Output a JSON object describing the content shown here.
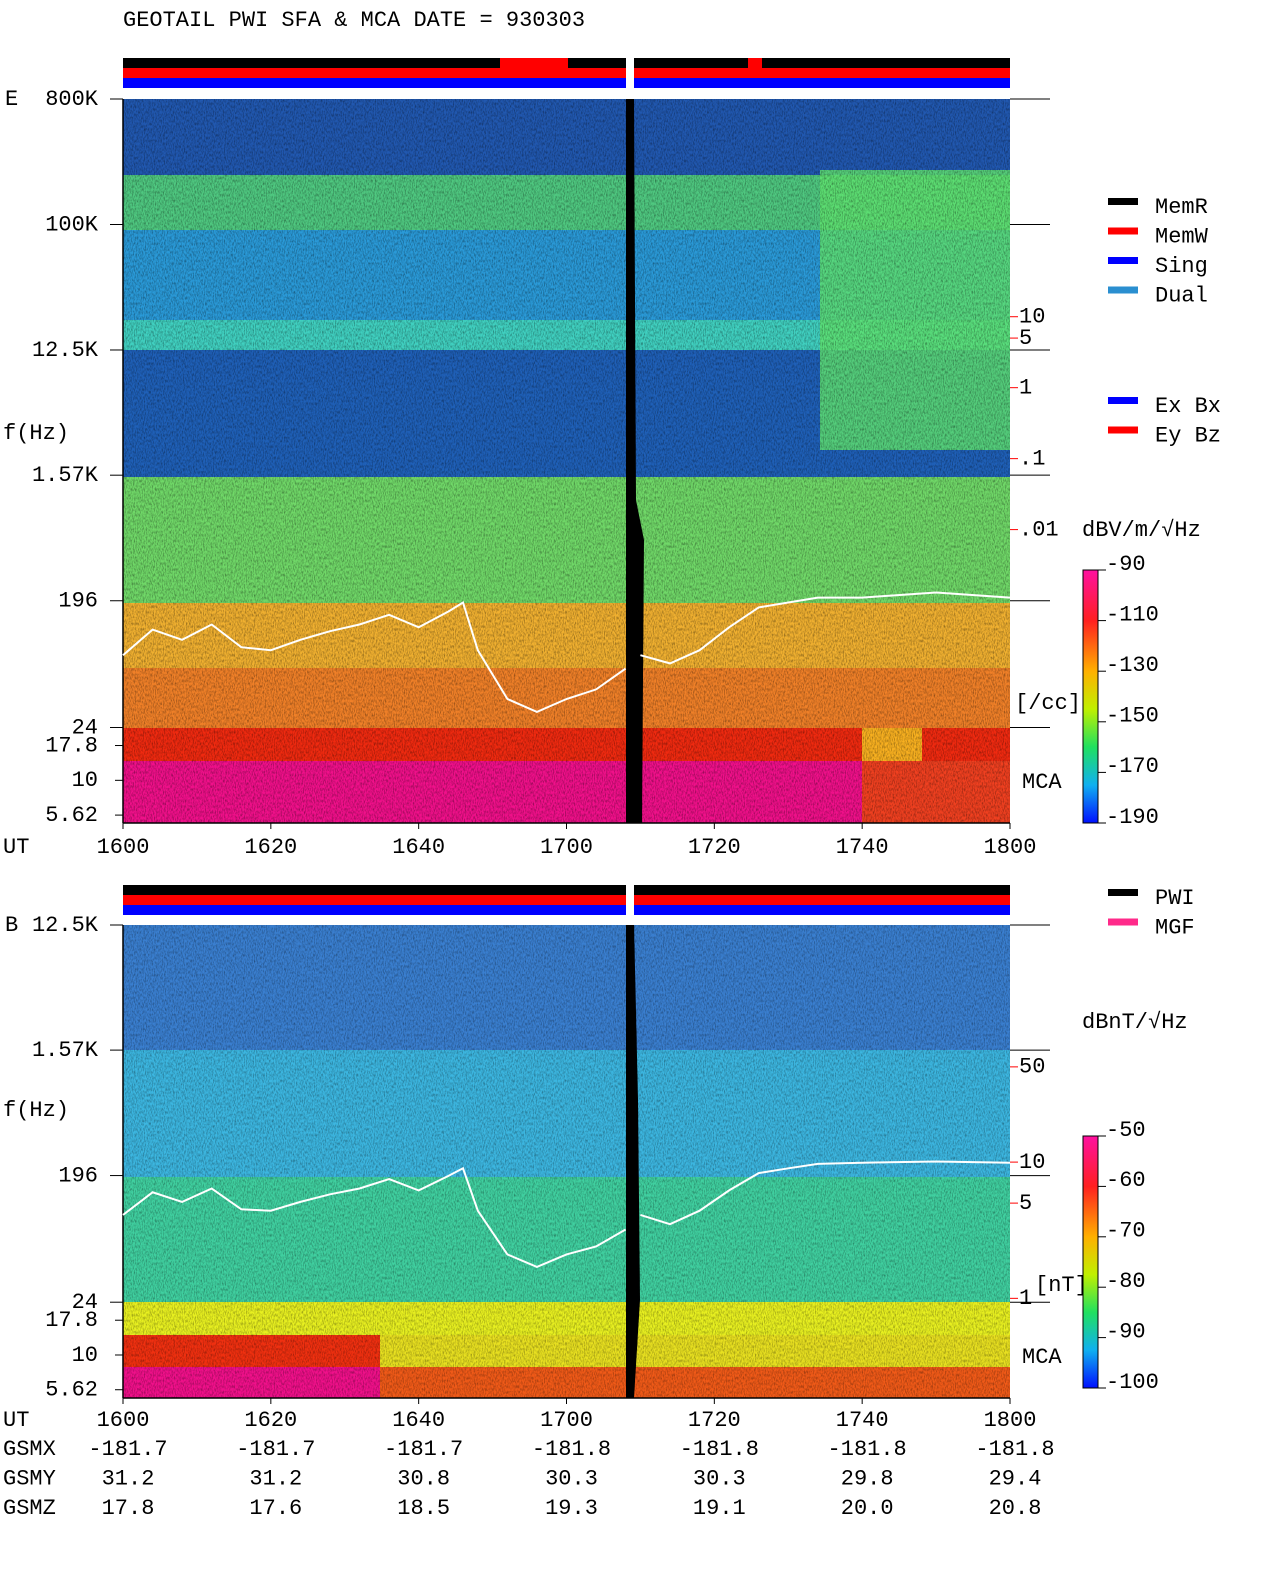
{
  "title": "GEOTAIL   PWI SFA & MCA   DATE = 930303",
  "chart_data": [
    {
      "type": "spectrogram",
      "panel": "E",
      "ylabel": "f(Hz)",
      "xlabel": "UT",
      "log_y": true,
      "ylim": [
        4.93,
        800000
      ],
      "yticks": [
        {
          "value": 800000,
          "label": "800K"
        },
        {
          "value": 100000,
          "label": "100K"
        },
        {
          "value": 12500,
          "label": "12.5K"
        },
        {
          "value": 1570,
          "label": "1.57K"
        },
        196,
        24
      ],
      "mca_label": "MCA",
      "mca_yticks": [
        17.8,
        10,
        5.62
      ],
      "categories": [
        "1600",
        "1620",
        "1640",
        "1700",
        "1720",
        "1740",
        "1800"
      ],
      "legend": [
        {
          "name": "MemR",
          "color": "#000000"
        },
        {
          "name": "MemW",
          "color": "#ff0000"
        },
        {
          "name": "Sing",
          "color": "#0000ff"
        },
        {
          "name": "Dual",
          "color": "#2a8fd0"
        }
      ],
      "legend_components": [
        {
          "name": "Ex Bx",
          "color": "#0000ff"
        },
        {
          "name": "Ey Bz",
          "color": "#ff0000"
        }
      ],
      "colorbar": {
        "label": "dBV/m/√Hz",
        "lim": [
          -190,
          -90
        ],
        "ticks": [
          -90,
          -110,
          -130,
          -150,
          -170,
          -190
        ]
      },
      "y2lim": [
        1.6e-05,
        11700
      ],
      "y2ticks": [
        10,
        5,
        1,
        {
          "value": 0.1,
          "label": ".1"
        },
        {
          "value": 0.01,
          "label": ".01"
        }
      ],
      "y2_unit": "[/cc]",
      "y2_color": "#ff0000",
      "trace": {
        "color": "#ffffff",
        "axis": "y2",
        "x": [
          "1600",
          "1604",
          "1608",
          "1612",
          "1616",
          "1620",
          "1624",
          "1628",
          "1632",
          "1636",
          "1640",
          "1644",
          "1646",
          "1648",
          "1652",
          "1656",
          "1700",
          "1704",
          "1708",
          "1709",
          "1710",
          "1714",
          "1718",
          "1722",
          "1726",
          "1730",
          "1734",
          "1740",
          "1750",
          "1800"
        ],
        "values": [
          0.00017,
          0.00039,
          0.00028,
          0.00046,
          0.00022,
          0.0002,
          0.00028,
          0.00037,
          0.00046,
          0.00063,
          0.00042,
          0.0007,
          0.00094,
          0.0002,
          4.1e-05,
          2.7e-05,
          4.1e-05,
          5.6e-05,
          0.00011,
          null,
          0.00017,
          0.00013,
          0.0002,
          0.00042,
          0.0008,
          0.00094,
          0.0011,
          0.0011,
          0.0013,
          0.0011
        ]
      }
    },
    {
      "type": "spectrogram",
      "panel": "B",
      "ylabel": "f(Hz)",
      "xlabel": "UT",
      "log_y": true,
      "ylim": [
        4.9,
        12500
      ],
      "yticks": [
        {
          "value": 12500,
          "label": "12.5K"
        },
        {
          "value": 1570,
          "label": "1.57K"
        },
        196,
        24
      ],
      "mca_label": "MCA",
      "mca_yticks": [
        17.8,
        10,
        5.62
      ],
      "categories": [
        "1600",
        "1620",
        "1640",
        "1700",
        "1720",
        "1740",
        "1800"
      ],
      "legend": [
        {
          "name": "PWI",
          "color": "#000000"
        },
        {
          "name": "MGF",
          "color": "#ff2a8a"
        }
      ],
      "colorbar": {
        "label": "dBnT/√Hz",
        "lim": [
          -100,
          -50
        ],
        "ticks": [
          -50,
          -60,
          -70,
          -80,
          -90,
          -100
        ]
      },
      "y2lim": [
        0.94,
        550
      ],
      "y2ticks": [
        50,
        10,
        5,
        1
      ],
      "y2_unit": "[nT]",
      "y2_color": "#ff0000",
      "trace": {
        "color": "#ffffff",
        "axis": "y2",
        "x": [
          "1600",
          "1604",
          "1608",
          "1612",
          "1616",
          "1620",
          "1624",
          "1628",
          "1632",
          "1636",
          "1640",
          "1644",
          "1646",
          "1648",
          "1652",
          "1656",
          "1700",
          "1704",
          "1708",
          "1709",
          "1710",
          "1714",
          "1718",
          "1722",
          "1726",
          "1730",
          "1734",
          "1740",
          "1750",
          "1800"
        ],
        "values": [
          4.1,
          6.0,
          5.1,
          6.4,
          4.5,
          4.4,
          5.1,
          5.8,
          6.4,
          7.5,
          6.2,
          7.9,
          9.0,
          4.4,
          2.1,
          1.7,
          2.1,
          2.4,
          3.2,
          null,
          4.1,
          3.5,
          4.4,
          6.2,
          8.3,
          9.0,
          9.7,
          9.9,
          10.1,
          9.9
        ]
      }
    }
  ],
  "orbit": {
    "rows": [
      {
        "label": "GSMX",
        "values": [
          "-181.7",
          "-181.7",
          "-181.7",
          "-181.8",
          "-181.8",
          "-181.8",
          "-181.8"
        ]
      },
      {
        "label": "GSMY",
        "values": [
          "31.2",
          "31.2",
          "30.8",
          "30.3",
          "30.3",
          "29.8",
          "29.4"
        ]
      },
      {
        "label": "GSMZ",
        "values": [
          "17.8",
          "17.6",
          "18.5",
          "19.3",
          "19.1",
          "20.0",
          "20.8"
        ]
      }
    ]
  }
}
